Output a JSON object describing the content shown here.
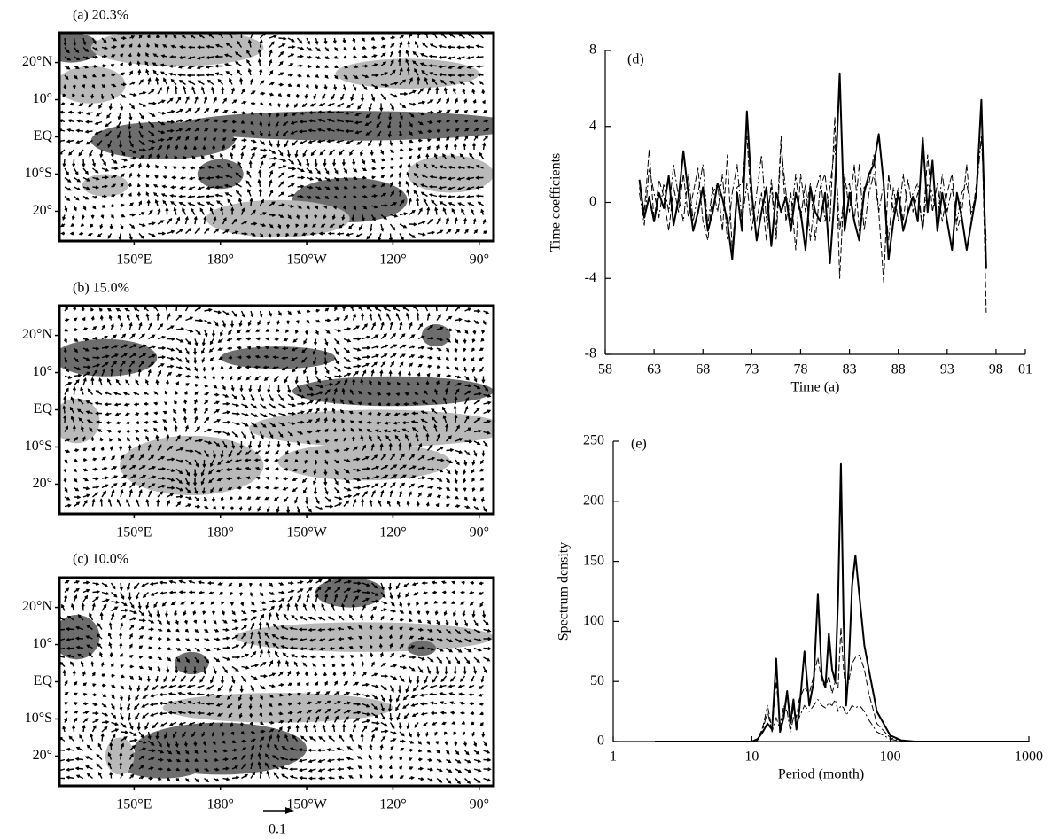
{
  "chart_data": [
    {
      "type": "map",
      "title": "(a) 20.3%",
      "xlim": [
        124,
        275
      ],
      "ylim": [
        -28,
        28
      ],
      "xticks": [
        {
          "value": 150,
          "label": "150°E"
        },
        {
          "value": 180,
          "label": "180°"
        },
        {
          "value": 210,
          "label": "150°W"
        },
        {
          "value": 240,
          "label": "120°"
        },
        {
          "value": 270,
          "label": "90°"
        }
      ],
      "yticks": [
        {
          "value": 20,
          "label": "20°N"
        },
        {
          "value": 10,
          "label": "10°"
        },
        {
          "value": 0,
          "label": "EQ"
        },
        {
          "value": -10,
          "label": "10°S"
        },
        {
          "value": -20,
          "label": "20°"
        }
      ]
    },
    {
      "type": "map",
      "title": "(b) 15.0%",
      "xlim": [
        124,
        275
      ],
      "ylim": [
        -28,
        28
      ],
      "xticks": [
        {
          "value": 150,
          "label": "150°E"
        },
        {
          "value": 180,
          "label": "180°"
        },
        {
          "value": 210,
          "label": "150°W"
        },
        {
          "value": 240,
          "label": "120°"
        },
        {
          "value": 270,
          "label": "90°"
        }
      ],
      "yticks": [
        {
          "value": 20,
          "label": "20°N"
        },
        {
          "value": 10,
          "label": "10°"
        },
        {
          "value": 0,
          "label": "EQ"
        },
        {
          "value": -10,
          "label": "10°S"
        },
        {
          "value": -20,
          "label": "20°"
        }
      ]
    },
    {
      "type": "map",
      "title": "(c) 10.0%",
      "xlim": [
        124,
        275
      ],
      "ylim": [
        -28,
        28
      ],
      "xticks": [
        {
          "value": 150,
          "label": "150°E"
        },
        {
          "value": 180,
          "label": "180°"
        },
        {
          "value": 210,
          "label": "150°W"
        },
        {
          "value": 240,
          "label": "120°"
        },
        {
          "value": 270,
          "label": "90°"
        }
      ],
      "yticks": [
        {
          "value": 20,
          "label": "20°N"
        },
        {
          "value": 10,
          "label": "10°"
        },
        {
          "value": 0,
          "label": "EQ"
        },
        {
          "value": -10,
          "label": "10°S"
        },
        {
          "value": -20,
          "label": "20°"
        }
      ],
      "reference_vector": 0.1
    },
    {
      "type": "line",
      "title": "(d)",
      "xlabel": "Time (a)",
      "ylabel": "Time coefficients",
      "xlim": [
        58,
        101
      ],
      "ylim": [
        -8,
        8
      ],
      "xticks": [
        58,
        63,
        68,
        73,
        78,
        83,
        88,
        93,
        98,
        {
          "value": 101,
          "label": "01"
        }
      ],
      "yticks": [
        -8,
        -4,
        0,
        4,
        8
      ],
      "x": [
        61.5,
        62,
        62.5,
        63,
        63.5,
        64,
        64.5,
        65,
        65.5,
        66,
        66.5,
        67,
        67.5,
        68,
        68.5,
        69,
        69.5,
        70,
        70.5,
        71,
        71.5,
        72,
        72.5,
        73,
        73.5,
        74,
        74.5,
        75,
        75.5,
        76,
        76.5,
        77,
        77.5,
        78,
        78.5,
        79,
        79.5,
        80,
        80.5,
        81,
        81.5,
        82,
        82.5,
        83,
        83.5,
        84,
        84.5,
        85,
        85.5,
        86,
        86.5,
        87,
        87.5,
        88,
        88.5,
        89,
        89.5,
        90,
        90.5,
        91,
        91.5,
        92,
        92.5,
        93,
        93.5,
        94,
        94.5,
        95,
        95.5,
        96,
        96.5,
        97
      ],
      "series": [
        {
          "color": "#000000",
          "line_style": "solid",
          "line_width": 2,
          "values": [
            1.2,
            -0.8,
            0.3,
            -1.0,
            0.5,
            -0.3,
            1.4,
            -1.2,
            0.2,
            2.7,
            0.5,
            -1.5,
            -0.5,
            0.8,
            -1.5,
            -0.5,
            1.0,
            0.2,
            -1.0,
            -3.0,
            0.5,
            -1.5,
            4.8,
            0.5,
            -2.0,
            -0.5,
            0.8,
            -2.3,
            0.5,
            -0.5,
            0.3,
            -1.5,
            0.5,
            -0.5,
            -2.5,
            0.8,
            -0.5,
            -1.0,
            0.5,
            -3.2,
            0.5,
            6.8,
            -1.5,
            0.5,
            -1.0,
            -2.0,
            0.5,
            1.5,
            2.0,
            3.6,
            1.0,
            -3.0,
            -1.0,
            0.5,
            -1.5,
            -0.5,
            0.3,
            -1.0,
            3.4,
            -0.5,
            2.2,
            -1.5,
            0.5,
            -1.0,
            -2.5,
            0.5,
            -0.8,
            -2.5,
            -1.0,
            0.5,
            5.4,
            -3.5
          ]
        },
        {
          "color": "#000000",
          "line_style": "dashed",
          "line_width": 1,
          "values": [
            0.8,
            -0.5,
            2.8,
            -1.0,
            1.2,
            0.3,
            -1.5,
            0.8,
            -0.5,
            1.5,
            -0.8,
            0.5,
            1.8,
            -1.0,
            -2.0,
            0.5,
            1.0,
            -1.5,
            2.5,
            -2.5,
            0.8,
            1.0,
            3.5,
            -0.5,
            -1.0,
            0.5,
            -2.0,
            1.2,
            -1.5,
            3.5,
            -1.0,
            0.5,
            -2.5,
            1.5,
            -0.5,
            1.0,
            -2.0,
            0.8,
            1.5,
            -1.0,
            4.5,
            -4.0,
            1.5,
            -0.5,
            2.0,
            -1.5,
            0.8,
            1.0,
            2.5,
            -0.5,
            -4.2,
            1.5,
            -0.5,
            0.8,
            -1.0,
            1.2,
            -0.5,
            0.5,
            -1.5,
            2.5,
            -0.5,
            1.0,
            -1.0,
            0.5,
            1.5,
            -1.5,
            -0.5,
            2.0,
            -1.0,
            1.0,
            5.0,
            -5.8
          ]
        },
        {
          "color": "#000000",
          "line_style": "dashdot",
          "line_width": 1,
          "values": [
            0.5,
            -1.2,
            1.8,
            0.5,
            -0.8,
            1.0,
            -0.5,
            2.0,
            0.3,
            -1.0,
            1.5,
            -1.0,
            0.5,
            2.0,
            -1.2,
            0.8,
            -0.5,
            1.5,
            -2.0,
            0.5,
            2.0,
            -1.0,
            1.0,
            -1.5,
            0.5,
            2.5,
            -1.0,
            0.8,
            -2.0,
            3.0,
            0.5,
            -1.0,
            1.5,
            -0.8,
            1.0,
            -2.0,
            0.5,
            1.5,
            -1.0,
            0.8,
            3.0,
            -1.5,
            0.5,
            1.0,
            -1.0,
            2.0,
            -1.5,
            0.5,
            1.5,
            -0.5,
            1.0,
            -2.0,
            0.8,
            -1.0,
            1.5,
            -0.5,
            0.5,
            1.0,
            -1.5,
            1.0,
            0.5,
            -1.0,
            1.5,
            -0.5,
            0.8,
            -1.0,
            0.5,
            1.0,
            -0.5,
            0.5,
            3.5,
            -2.0
          ]
        }
      ]
    },
    {
      "type": "line",
      "title": "(e)",
      "xlabel": "Period (month)",
      "ylabel": "Spectrum density",
      "log_x": true,
      "xlim": [
        1,
        1000
      ],
      "ylim": [
        0,
        250
      ],
      "xticks": [
        1,
        10,
        100,
        1000
      ],
      "yticks": [
        0,
        50,
        100,
        150,
        200,
        250
      ],
      "x": [
        2,
        5,
        10,
        11,
        12,
        13,
        14,
        15,
        16,
        17,
        18,
        19,
        20,
        21,
        22,
        24,
        26,
        28,
        30,
        32,
        34,
        36,
        38,
        40,
        42,
        44,
        46,
        48,
        50,
        53,
        56,
        60,
        65,
        70,
        80,
        100,
        120,
        150,
        1000
      ],
      "series": [
        {
          "color": "#000000",
          "line_style": "solid",
          "line_width": 2,
          "values": [
            0,
            0,
            0,
            2,
            8,
            15,
            10,
            69,
            8,
            20,
            42,
            15,
            35,
            10,
            25,
            75,
            30,
            50,
            123,
            55,
            45,
            90,
            60,
            50,
            120,
            231,
            100,
            30,
            60,
            130,
            155,
            120,
            80,
            60,
            25,
            5,
            1,
            0,
            0
          ]
        },
        {
          "color": "#000000",
          "line_style": "dashed",
          "line_width": 1,
          "values": [
            0,
            0,
            0,
            1,
            12,
            30,
            10,
            50,
            15,
            25,
            40,
            10,
            30,
            20,
            35,
            45,
            40,
            55,
            70,
            50,
            45,
            55,
            40,
            50,
            45,
            95,
            60,
            40,
            50,
            65,
            70,
            72,
            60,
            40,
            15,
            3,
            1,
            0,
            0
          ]
        },
        {
          "color": "#000000",
          "line_style": "dashdot",
          "line_width": 1,
          "values": [
            0,
            0,
            0,
            1,
            10,
            25,
            8,
            20,
            10,
            30,
            25,
            8,
            20,
            15,
            20,
            30,
            25,
            30,
            35,
            30,
            28,
            32,
            30,
            35,
            25,
            30,
            28,
            22,
            25,
            30,
            28,
            30,
            25,
            18,
            8,
            2,
            0,
            0,
            0
          ]
        }
      ]
    }
  ]
}
